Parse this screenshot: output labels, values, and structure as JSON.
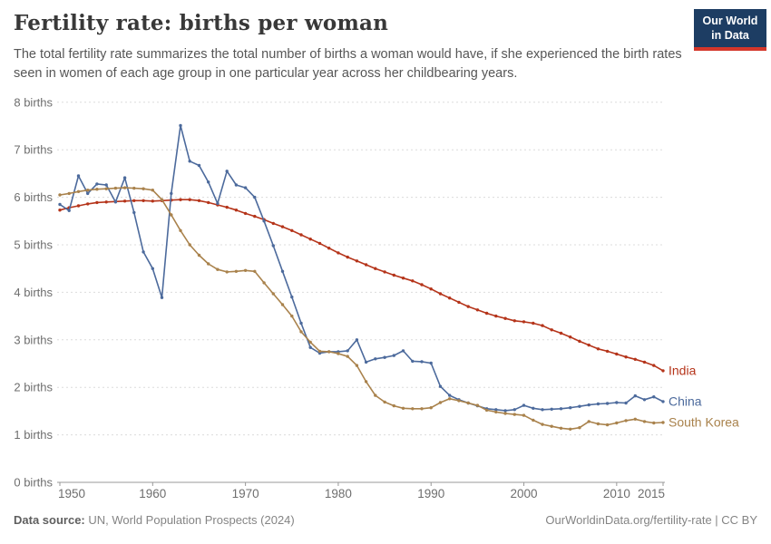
{
  "header": {
    "title": "Fertility rate: births per woman",
    "subtitle": "The total fertility rate summarizes the total number of births a woman would have, if she experienced the birth rates seen in women of each age group in one particular year across her childbearing years.",
    "logo": {
      "line1": "Our World",
      "line2": "in Data"
    }
  },
  "colors": {
    "logo_bg": "#1d3d63",
    "logo_accent": "#d4362a",
    "grid": "#dcdcdc",
    "axis": "#999999",
    "tick_label": "#6e6e6e",
    "title": "#383838",
    "subtitle": "#565656",
    "footer": "#848484"
  },
  "chart_data": {
    "type": "line",
    "title": "Fertility rate: births per woman",
    "xlabel": "",
    "ylabel": "births",
    "xlim": [
      1950,
      2015
    ],
    "ylim": [
      0,
      8
    ],
    "grid": true,
    "legend_position": "right of line ends",
    "x_ticks": [
      1950,
      1960,
      1970,
      1980,
      1990,
      2000,
      2010,
      2015
    ],
    "y_ticks": [
      0,
      1,
      2,
      3,
      4,
      5,
      6,
      7,
      8
    ],
    "y_tick_suffix": " births",
    "x": [
      1950,
      1951,
      1952,
      1953,
      1954,
      1955,
      1956,
      1957,
      1958,
      1959,
      1960,
      1961,
      1962,
      1963,
      1964,
      1965,
      1966,
      1967,
      1968,
      1969,
      1970,
      1971,
      1972,
      1973,
      1974,
      1975,
      1976,
      1977,
      1978,
      1979,
      1980,
      1981,
      1982,
      1983,
      1984,
      1985,
      1986,
      1987,
      1988,
      1989,
      1990,
      1991,
      1992,
      1993,
      1994,
      1995,
      1996,
      1997,
      1998,
      1999,
      2000,
      2001,
      2002,
      2003,
      2004,
      2005,
      2006,
      2007,
      2008,
      2009,
      2010,
      2011,
      2012,
      2013,
      2014,
      2015
    ],
    "series": [
      {
        "name": "India",
        "color": "#b5341a",
        "values": [
          5.73,
          5.78,
          5.82,
          5.86,
          5.89,
          5.9,
          5.91,
          5.92,
          5.93,
          5.93,
          5.92,
          5.93,
          5.94,
          5.95,
          5.95,
          5.93,
          5.89,
          5.84,
          5.79,
          5.73,
          5.66,
          5.6,
          5.53,
          5.45,
          5.38,
          5.3,
          5.21,
          5.12,
          5.03,
          4.93,
          4.83,
          4.74,
          4.66,
          4.58,
          4.5,
          4.43,
          4.36,
          4.3,
          4.24,
          4.16,
          4.07,
          3.97,
          3.88,
          3.79,
          3.7,
          3.63,
          3.56,
          3.5,
          3.45,
          3.4,
          3.38,
          3.35,
          3.3,
          3.21,
          3.14,
          3.06,
          2.97,
          2.89,
          2.81,
          2.76,
          2.7,
          2.64,
          2.59,
          2.53,
          2.46,
          2.35
        ]
      },
      {
        "name": "China",
        "color": "#4c6a9c",
        "values": [
          5.85,
          5.72,
          6.45,
          6.08,
          6.28,
          6.26,
          5.9,
          6.41,
          5.68,
          4.85,
          4.5,
          3.89,
          6.08,
          7.51,
          6.76,
          6.67,
          6.32,
          5.87,
          6.55,
          6.26,
          6.2,
          6.0,
          5.5,
          4.98,
          4.44,
          3.9,
          3.35,
          2.84,
          2.72,
          2.75,
          2.75,
          2.77,
          3.0,
          2.53,
          2.6,
          2.63,
          2.67,
          2.77,
          2.55,
          2.54,
          2.51,
          2.02,
          1.83,
          1.74,
          1.67,
          1.61,
          1.55,
          1.53,
          1.51,
          1.53,
          1.62,
          1.56,
          1.53,
          1.54,
          1.55,
          1.57,
          1.6,
          1.63,
          1.65,
          1.66,
          1.68,
          1.67,
          1.82,
          1.74,
          1.8,
          1.7
        ]
      },
      {
        "name": "South Korea",
        "color": "#a9824c",
        "values": [
          6.05,
          6.08,
          6.12,
          6.15,
          6.17,
          6.18,
          6.19,
          6.2,
          6.19,
          6.18,
          6.15,
          5.95,
          5.63,
          5.3,
          5.0,
          4.78,
          4.6,
          4.48,
          4.43,
          4.44,
          4.46,
          4.44,
          4.2,
          3.97,
          3.74,
          3.5,
          3.17,
          2.95,
          2.76,
          2.75,
          2.71,
          2.65,
          2.46,
          2.12,
          1.83,
          1.69,
          1.61,
          1.56,
          1.55,
          1.55,
          1.57,
          1.68,
          1.76,
          1.72,
          1.67,
          1.62,
          1.52,
          1.48,
          1.45,
          1.43,
          1.41,
          1.31,
          1.22,
          1.18,
          1.14,
          1.12,
          1.15,
          1.28,
          1.23,
          1.21,
          1.25,
          1.3,
          1.33,
          1.28,
          1.25,
          1.26
        ]
      }
    ]
  },
  "footer": {
    "source_prefix": "Data source:",
    "source": " UN, World Population Prospects (2024)",
    "link": "OurWorldinData.org/fertility-rate | CC BY"
  }
}
